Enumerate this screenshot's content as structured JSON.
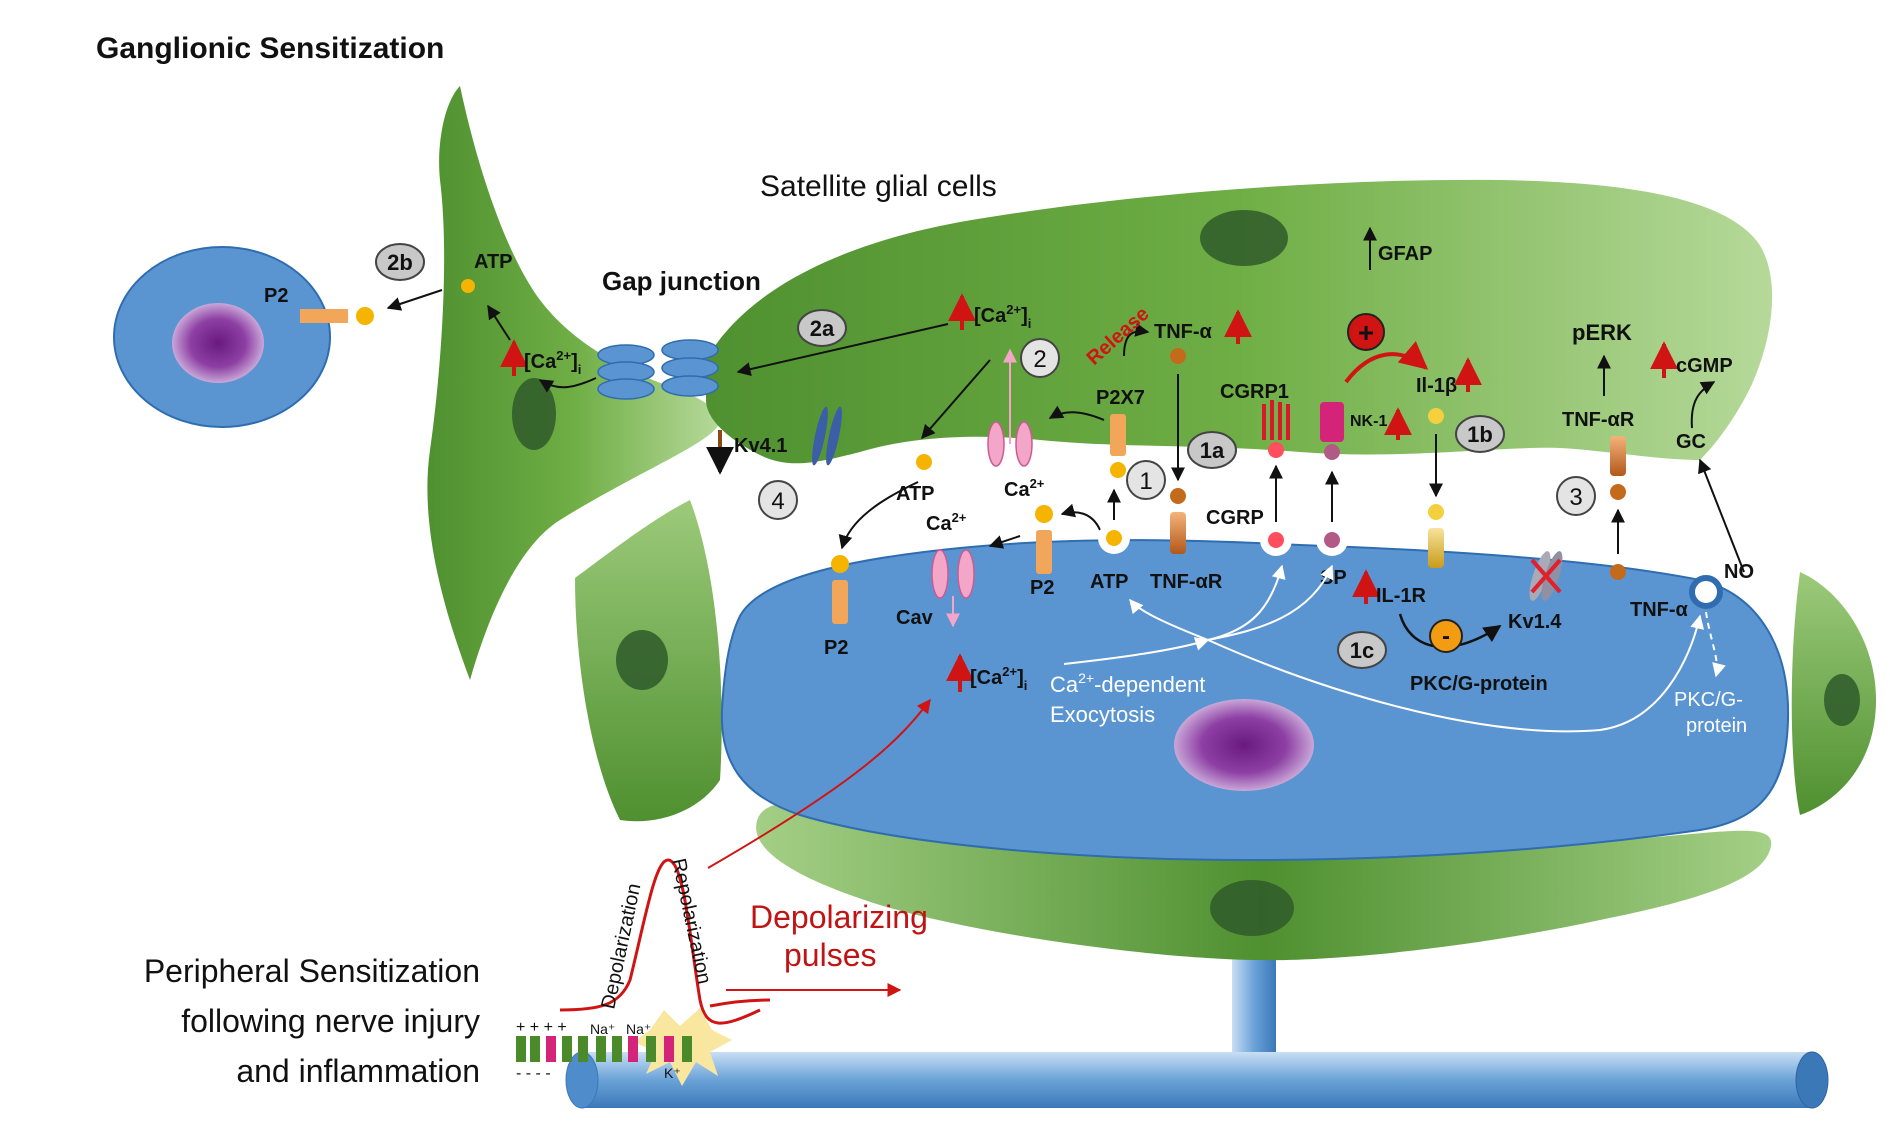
{
  "title": "Ganglionic Sensitization",
  "satellite_label": "Satellite glial cells",
  "gap_junction_label": "Gap junction",
  "peripheral_label": [
    "Peripheral Sensitization",
    "following nerve injury",
    "and inflammation"
  ],
  "pulses_label": [
    "Depolarizing",
    "pulses"
  ],
  "depolarization": "Depolarization",
  "repolarization": "Repolarization",
  "exocytosis": [
    "-dependent",
    "Exocytosis"
  ],
  "ca": "Ca",
  "ca_sup": "2+",
  "ca_i_sub": "i",
  "k_plus": "K⁺",
  "na_plus": "Na⁺",
  "plus_signs": "+ + + +",
  "minus_signs": "- - - -",
  "badges": {
    "b2b": "2b",
    "b2a": "2a",
    "b1a": "1a",
    "b1b": "1b",
    "b1c": "1c",
    "c1": "1",
    "c2": "2",
    "c3": "3",
    "c4": "4"
  },
  "labels": {
    "atp": "ATP",
    "p2": "P2",
    "p2x7": "P2X7",
    "tnf_a": "TNF-α",
    "tnf_ar": "TNF-αR",
    "release": "Release",
    "cgrp1": "CGRP1",
    "cgrp": "CGRP",
    "nk1": "NK-1",
    "il1b": "Il-1β",
    "il1r": "IL-1R",
    "sp": "SP",
    "gfap": "GFAP",
    "perk": "pERK",
    "cgmp": "cGMP",
    "gc": "GC",
    "no": "NO",
    "kv41": "Kv4.1",
    "kv14": "Kv1.4",
    "cav": "Cav",
    "pkc_g": "PKC/G-protein",
    "pkc_g_split": [
      "PKC/G-",
      "protein"
    ],
    "plus": "+",
    "minus": "-"
  },
  "colors": {
    "glia": "#5c9e3a",
    "glia_light": "#a9d08e",
    "neuron": "#5a95d2",
    "nucleus": "#7a2a8c",
    "axon": "#4f8ccc",
    "arrow_red": "#d01414",
    "arrow_brown": "#8a4b14",
    "atp_dot": "#f4b400",
    "p2_bar": "#f2a65a"
  }
}
